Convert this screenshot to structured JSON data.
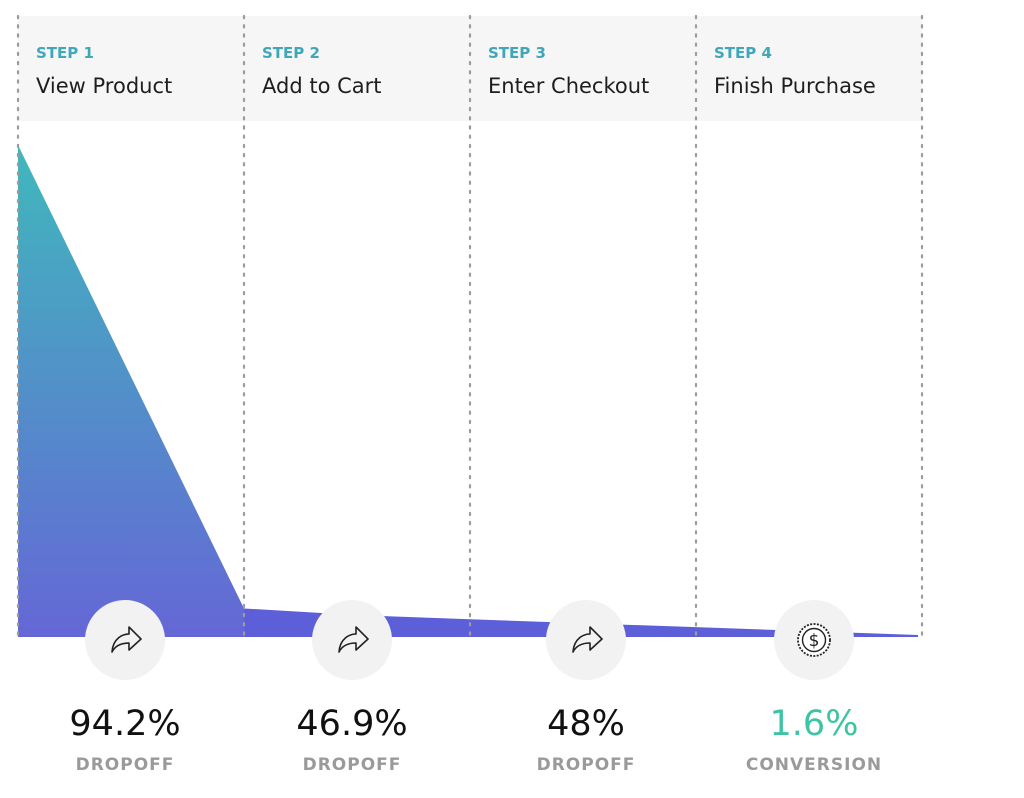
{
  "chart_data": {
    "type": "area",
    "title": "",
    "categories": [
      "View Product",
      "Add to Cart",
      "Enter Checkout",
      "Finish Purchase"
    ],
    "steps": [
      {
        "step_label": "STEP 1",
        "name": "View Product",
        "metric": "94.2%",
        "metric_label": "DROPOFF",
        "icon": "share-arrow-icon"
      },
      {
        "step_label": "STEP 2",
        "name": "Add to Cart",
        "metric": "46.9%",
        "metric_label": "DROPOFF",
        "icon": "share-arrow-icon"
      },
      {
        "step_label": "STEP 3",
        "name": "Enter Checkout",
        "metric": "48%",
        "metric_label": "DROPOFF",
        "icon": "share-arrow-icon"
      },
      {
        "step_label": "STEP 4",
        "name": "Finish Purchase",
        "metric": "1.6%",
        "metric_label": "CONVERSION",
        "icon": "dollar-coin-icon"
      }
    ],
    "values": [
      100,
      5.8,
      3.1,
      1.6
    ],
    "ylim": [
      0,
      100
    ],
    "grid": true,
    "colors": {
      "gradient_top": "#3fb8bc",
      "gradient_bottom": "#6567d6",
      "tail": "#5d5fd8",
      "step_label": "#3fa7b8",
      "conversion": "#3ec3a4",
      "metric_label": "#9a9a9a",
      "header_bg": "#f6f6f6",
      "icon_bg": "#f2f2f2"
    }
  }
}
